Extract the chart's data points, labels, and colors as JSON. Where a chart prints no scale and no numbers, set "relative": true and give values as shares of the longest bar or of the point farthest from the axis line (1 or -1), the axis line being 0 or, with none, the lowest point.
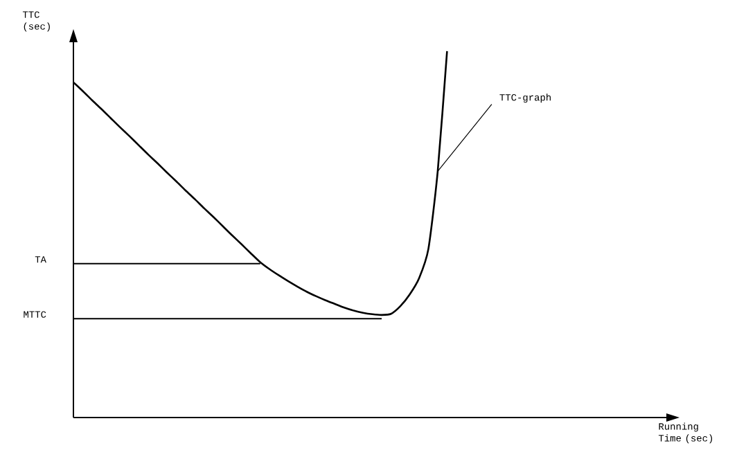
{
  "chart_data": {
    "type": "line",
    "relative": true,
    "xlabel": "Running Time (sec)",
    "ylabel": "TTC (sec)",
    "categories": [
      null,
      null,
      null,
      null,
      null,
      null,
      null,
      null,
      null,
      null,
      null,
      null,
      null,
      null,
      null,
      null,
      null,
      null,
      null,
      null,
      null,
      null,
      null,
      null,
      null,
      null,
      null,
      null,
      null,
      null,
      null,
      null,
      null,
      null,
      null,
      null,
      null,
      null,
      null,
      null,
      null,
      null,
      null,
      null,
      null,
      null,
      null,
      null,
      null,
      null,
      null,
      null,
      null,
      null,
      null,
      null,
      null,
      null,
      null,
      null,
      null,
      null
    ],
    "series": [
      {
        "color": "#000000",
        "values": [
          0.915,
          0.891,
          0.866,
          0.842,
          0.817,
          0.792,
          0.768,
          0.743,
          0.718,
          0.694,
          0.669,
          0.645,
          0.62,
          0.596,
          0.571,
          0.547,
          0.522,
          0.497,
          0.473,
          0.448,
          0.424,
          0.405,
          0.388,
          0.372,
          0.357,
          0.343,
          0.331,
          0.32,
          0.31,
          0.3,
          0.292,
          0.286,
          0.282,
          0.28,
          0.283,
          0.304,
          0.336,
          0.38,
          0.46,
          0.672,
          1,
          null,
          null,
          null,
          null,
          null,
          null,
          null,
          null,
          null,
          null,
          null,
          null,
          null,
          null,
          null,
          null,
          null,
          null,
          null,
          null,
          null
        ]
      }
    ],
    "ref_lines": [
      {
        "axis": "y",
        "value": 0.42,
        "label": "TA"
      },
      {
        "axis": "y",
        "value": 0.27,
        "label": "MTTC"
      }
    ],
    "annotations": [
      "TTC-graph"
    ]
  }
}
